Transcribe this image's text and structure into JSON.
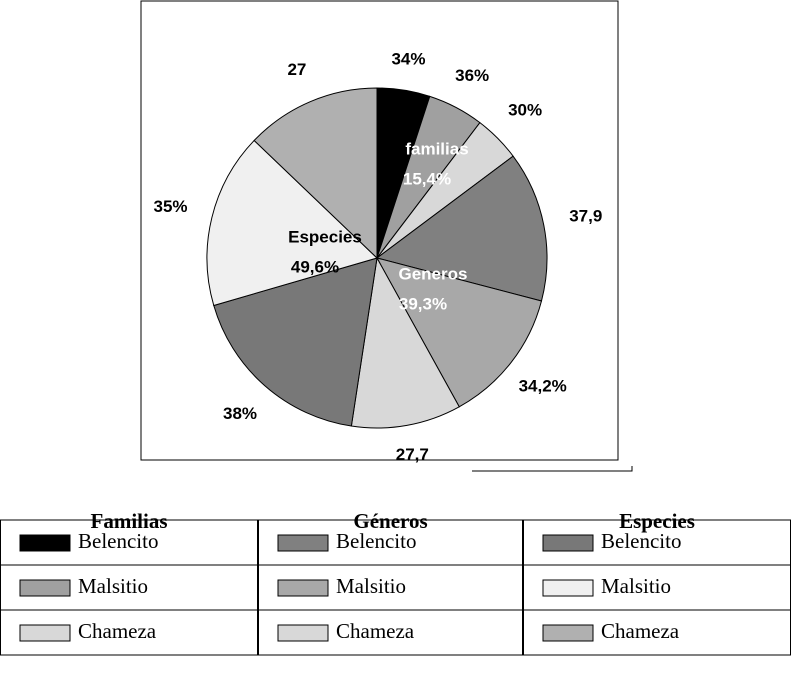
{
  "chart_data": {
    "type": "pie",
    "groups": [
      {
        "label": "familias",
        "header": "Familias",
        "value": 15.4,
        "value_label": "15,4%",
        "categories": [
          "Belencito",
          "Malsitio",
          "Chameza"
        ],
        "values": [
          34,
          36,
          30
        ],
        "value_labels": [
          "34%",
          "36%",
          "30%"
        ],
        "colors": [
          "#000000",
          "#a0a0a0",
          "#d8d8d8"
        ]
      },
      {
        "label": "Generos",
        "header": "Géneros",
        "value": 39.3,
        "value_label": "39,3%",
        "categories": [
          "Belencito",
          "Malsitio",
          "Chameza"
        ],
        "values": [
          37.9,
          34.2,
          27.7
        ],
        "value_labels": [
          "37,9",
          "34,2%",
          "27,7"
        ],
        "colors": [
          "#808080",
          "#a8a8a8",
          "#d8d8d8"
        ]
      },
      {
        "label": "Especies",
        "header": "Especies",
        "value": 49.6,
        "value_label": "49,6%",
        "categories": [
          "Belencito",
          "Malsitio",
          "Chameza"
        ],
        "values": [
          38,
          35,
          27
        ],
        "value_labels": [
          "38%",
          "35%",
          "27"
        ],
        "colors": [
          "#787878",
          "#f0f0f0",
          "#b0b0b0"
        ]
      }
    ]
  }
}
